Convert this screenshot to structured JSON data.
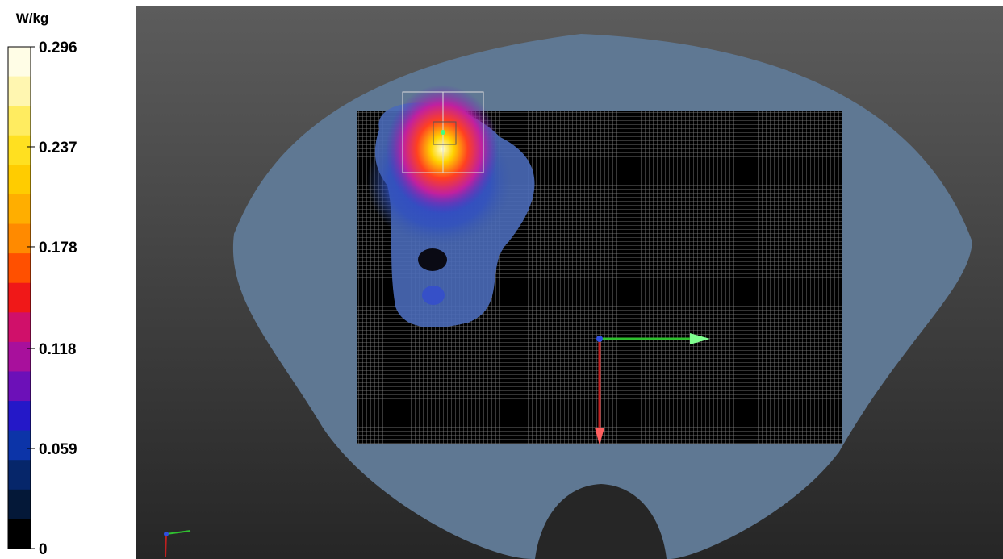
{
  "colorbar": {
    "unit": "W/kg",
    "ticks": [
      0.296,
      0.237,
      0.178,
      0.118,
      0.059,
      0
    ],
    "colors": [
      "#fffde6",
      "#fff6b0",
      "#ffec60",
      "#ffe020",
      "#ffcc00",
      "#ffae00",
      "#ff8a00",
      "#ff5000",
      "#f01818",
      "#d0106a",
      "#a8109c",
      "#6c10b8",
      "#2418c8",
      "#0c34a8",
      "#06266a",
      "#041838",
      "#000000"
    ]
  }
}
